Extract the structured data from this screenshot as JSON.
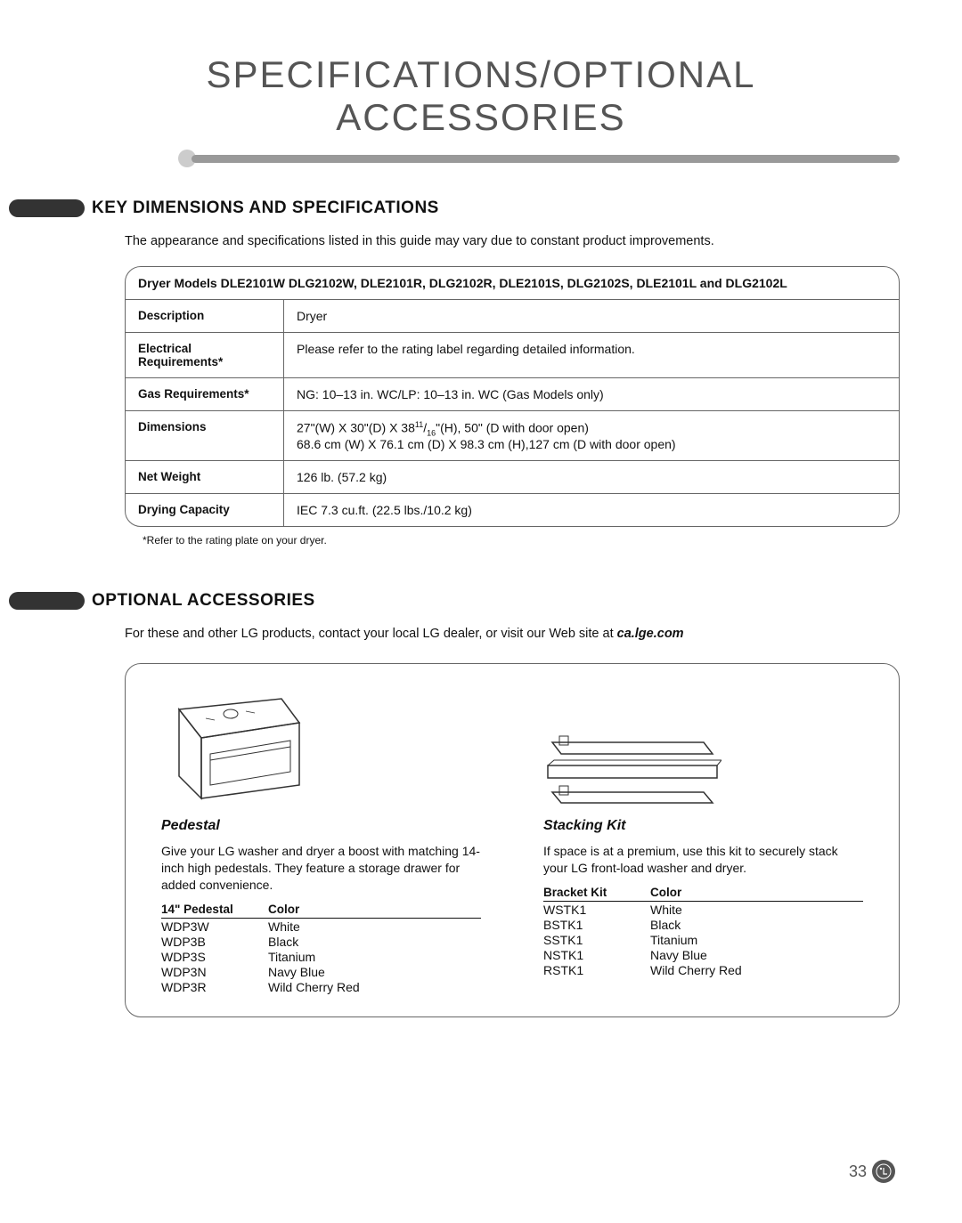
{
  "mainTitle": "SPECIFICATIONS/OPTIONAL ACCESSORIES",
  "section1": {
    "title": "KEY DIMENSIONS AND SPECIFICATIONS",
    "intro": "The appearance and specifications listed in this guide may vary due to constant product improvements.",
    "tableHeader": "Dryer Models DLE2101W DLG2102W, DLE2101R, DLG2102R, DLE2101S, DLG2102S, DLE2101L and DLG2102L",
    "rows": [
      {
        "label": "Description",
        "value": "Dryer"
      },
      {
        "label": "Electrical Requirements*",
        "value": "Please refer to the rating label regarding detailed information."
      },
      {
        "label": "Gas Requirements*",
        "value": "NG: 10–13 in. WC/LP: 10–13 in. WC (Gas Models only)"
      },
      {
        "label": "Dimensions",
        "valueLine1": "27\"(W) X 30\"(D) X 38",
        "valueSup1": "11",
        "valueMid": "/",
        "valueSup2": "16",
        "valueLine1b": "\"(H), 50\" (D with door open)",
        "valueLine2": "68.6 cm (W) X 76.1 cm (D) X 98.3 cm (H),127 cm (D with door open)"
      },
      {
        "label": "Net Weight",
        "value": "126 lb. (57.2 kg)"
      },
      {
        "label": "Drying Capacity",
        "value": "IEC 7.3 cu.ft. (22.5 lbs./10.2 kg)"
      }
    ],
    "footnote": "*Refer to the rating plate on your dryer."
  },
  "section2": {
    "title": "OPTIONAL ACCESSORIES",
    "intro": "For these and other LG products, contact your local LG dealer, or visit our Web site at ",
    "introBold": "ca.lge.com",
    "pedestal": {
      "title": "Pedestal",
      "desc": "Give your LG washer and dryer a boost with matching 14-inch high pedestals. They feature a storage drawer for added convenience.",
      "tableHeader1": "14\" Pedestal",
      "tableHeader2": "Color",
      "items": [
        {
          "model": "WDP3W",
          "color": "White"
        },
        {
          "model": "WDP3B",
          "color": "Black"
        },
        {
          "model": "WDP3S",
          "color": "Titanium"
        },
        {
          "model": "WDP3N",
          "color": "Navy Blue"
        },
        {
          "model": "WDP3R",
          "color": "Wild Cherry Red"
        }
      ]
    },
    "stacking": {
      "title": "Stacking Kit",
      "desc": "If space is at a premium, use this kit to securely stack your LG front-load washer and dryer.",
      "tableHeader1": "Bracket Kit",
      "tableHeader2": "Color",
      "items": [
        {
          "model": "WSTK1",
          "color": "White"
        },
        {
          "model": "BSTK1",
          "color": "Black"
        },
        {
          "model": "SSTK1",
          "color": "Titanium"
        },
        {
          "model": "NSTK1",
          "color": "Navy Blue"
        },
        {
          "model": "RSTK1",
          "color": "Wild Cherry Red"
        }
      ]
    }
  },
  "pageNumber": "33",
  "colors": {
    "titleText": "#555555",
    "barDot": "#cccccc",
    "barLine": "#999999",
    "bullet": "#333333",
    "border": "#666666",
    "text": "#111111"
  }
}
